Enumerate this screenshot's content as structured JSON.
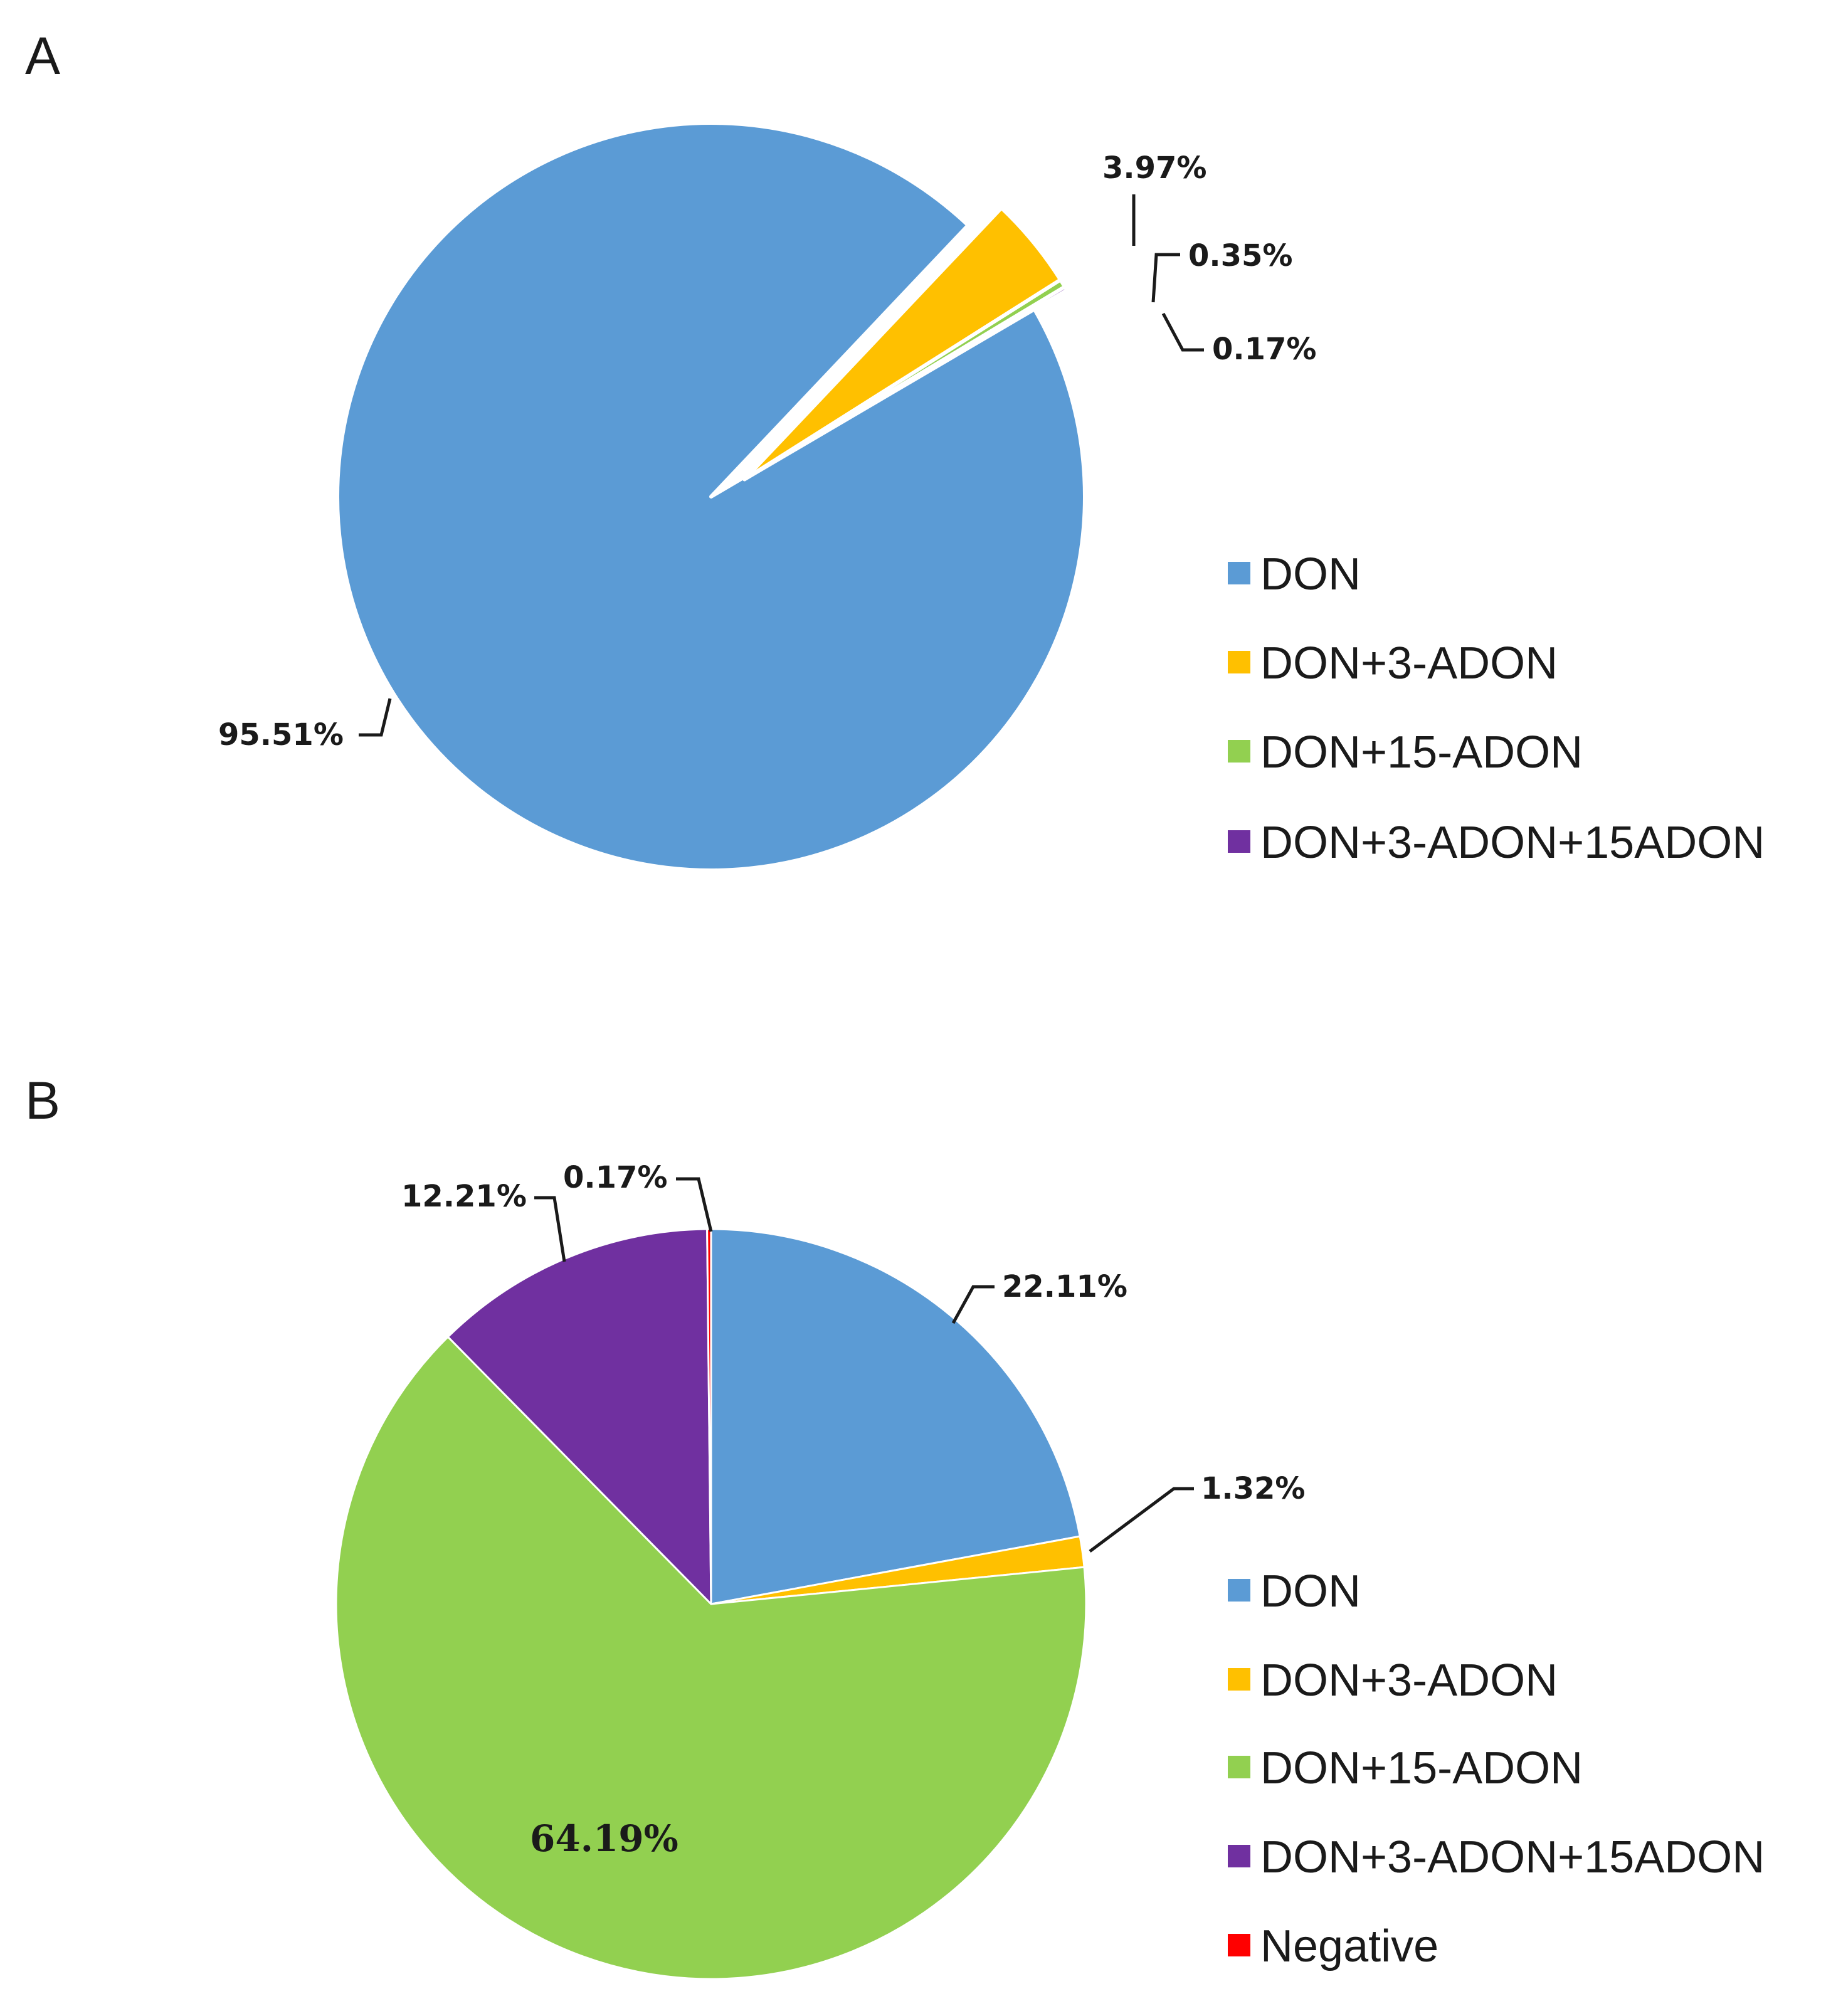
{
  "chart_data": [
    {
      "type": "pie",
      "panel_label": "A",
      "exploded": true,
      "slices": [
        {
          "name": "DON",
          "value": 95.51,
          "label": "95.51%",
          "color": "#5B9BD5"
        },
        {
          "name": "DON+3-ADON",
          "value": 3.97,
          "label": "3.97%",
          "color": "#FFC000"
        },
        {
          "name": "DON+15-ADON",
          "value": 0.35,
          "label": "0.35%",
          "color": "#92D050"
        },
        {
          "name": "DON+3-ADON+15ADON",
          "value": 0.17,
          "label": "0.17%",
          "color": "#7030A0"
        }
      ],
      "legend": [
        "DON",
        "DON+3-ADON",
        "DON+15-ADON",
        "DON+3-ADON+15ADON"
      ],
      "legend_position": "right"
    },
    {
      "type": "pie",
      "panel_label": "B",
      "exploded": false,
      "slices": [
        {
          "name": "DON",
          "value": 22.11,
          "label": "22.11%",
          "color": "#5B9BD5"
        },
        {
          "name": "DON+3-ADON",
          "value": 1.32,
          "label": "1.32%",
          "color": "#FFC000"
        },
        {
          "name": "DON+15-ADON",
          "value": 64.19,
          "label": "64.19%",
          "color": "#92D050"
        },
        {
          "name": "DON+3-ADON+15ADON",
          "value": 12.21,
          "label": "12.21%",
          "color": "#7030A0"
        },
        {
          "name": "Negative",
          "value": 0.17,
          "label": "0.17%",
          "color": "#FF0000"
        }
      ],
      "legend": [
        "DON",
        "DON+3-ADON",
        "DON+15-ADON",
        "DON+3-ADON+15ADON",
        "Negative"
      ],
      "legend_position": "right"
    }
  ]
}
